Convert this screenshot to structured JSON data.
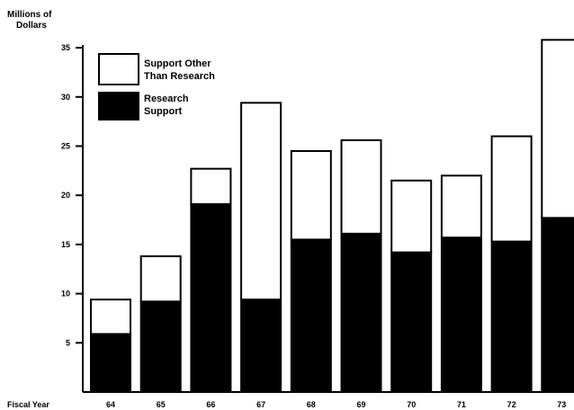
{
  "chart_data": {
    "type": "bar",
    "stacked": true,
    "ylabel_line1": "Millions of",
    "ylabel_line2": "Dollars",
    "xlabel": "Fiscal Year",
    "categories": [
      "64",
      "65",
      "66",
      "67",
      "68",
      "69",
      "70",
      "71",
      "72",
      "73"
    ],
    "yticks": [
      5,
      10,
      15,
      20,
      25,
      30,
      35
    ],
    "ylim": [
      0,
      35
    ],
    "series": [
      {
        "name": "Research Support",
        "color": "#000000",
        "values": [
          5.9,
          9.2,
          19.1,
          9.4,
          15.5,
          16.1,
          14.2,
          15.7,
          15.3,
          17.7
        ]
      },
      {
        "name": "Support Other Than Research",
        "color": "#ffffff",
        "values": [
          3.5,
          4.6,
          3.6,
          20.0,
          9.0,
          9.5,
          7.3,
          6.3,
          10.7,
          18.1
        ]
      }
    ],
    "legend": {
      "position": "top-left",
      "other_line1": "Support Other",
      "other_line2": "Than Research",
      "research_line1": "Research",
      "research_line2": "Support"
    },
    "grid": false
  }
}
